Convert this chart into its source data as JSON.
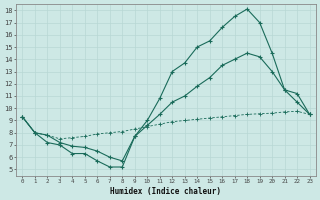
{
  "xlabel": "Humidex (Indice chaleur)",
  "bg_color": "#cde8e5",
  "grid_color": "#b8d8d4",
  "line_color": "#1a6b5a",
  "xlim": [
    -0.5,
    23.5
  ],
  "ylim": [
    4.5,
    18.5
  ],
  "xticks": [
    0,
    1,
    2,
    3,
    4,
    5,
    6,
    7,
    8,
    9,
    10,
    11,
    12,
    13,
    14,
    15,
    16,
    17,
    18,
    19,
    20,
    21,
    22,
    23
  ],
  "yticks": [
    5,
    6,
    7,
    8,
    9,
    10,
    11,
    12,
    13,
    14,
    15,
    16,
    17,
    18
  ],
  "series1_x": [
    0,
    1,
    2,
    3,
    4,
    5,
    6,
    7,
    8,
    9,
    10,
    11,
    12,
    13,
    14,
    15,
    16,
    17,
    18,
    19,
    20,
    21,
    22,
    23
  ],
  "series1_y": [
    9.3,
    8.0,
    7.2,
    7.0,
    6.3,
    6.3,
    5.7,
    5.2,
    5.2,
    7.7,
    9.0,
    10.8,
    13.0,
    13.7,
    15.0,
    15.5,
    16.6,
    17.5,
    18.1,
    17.0,
    14.5,
    11.5,
    11.2,
    9.5
  ],
  "series2_x": [
    0,
    1,
    2,
    3,
    4,
    5,
    6,
    7,
    8,
    9,
    10,
    11,
    12,
    13,
    14,
    15,
    16,
    17,
    18,
    19,
    20,
    21,
    22,
    23
  ],
  "series2_y": [
    9.3,
    8.0,
    7.8,
    7.5,
    7.6,
    7.7,
    7.9,
    8.0,
    8.1,
    8.3,
    8.5,
    8.7,
    8.9,
    9.0,
    9.1,
    9.2,
    9.3,
    9.4,
    9.5,
    9.55,
    9.6,
    9.7,
    9.75,
    9.5
  ],
  "series3_x": [
    0,
    1,
    2,
    3,
    4,
    5,
    6,
    7,
    8,
    9,
    10,
    11,
    12,
    13,
    14,
    15,
    16,
    17,
    18,
    19,
    20,
    21,
    22,
    23
  ],
  "series3_y": [
    9.3,
    8.0,
    7.8,
    7.2,
    6.9,
    6.8,
    6.5,
    6.0,
    5.7,
    7.7,
    8.6,
    9.5,
    10.5,
    11.0,
    11.8,
    12.5,
    13.5,
    14.0,
    14.5,
    14.2,
    13.0,
    11.5,
    10.5,
    9.5
  ],
  "xlabel_fontsize": 5.5,
  "tick_fontsize_x": 4.2,
  "tick_fontsize_y": 5.0
}
